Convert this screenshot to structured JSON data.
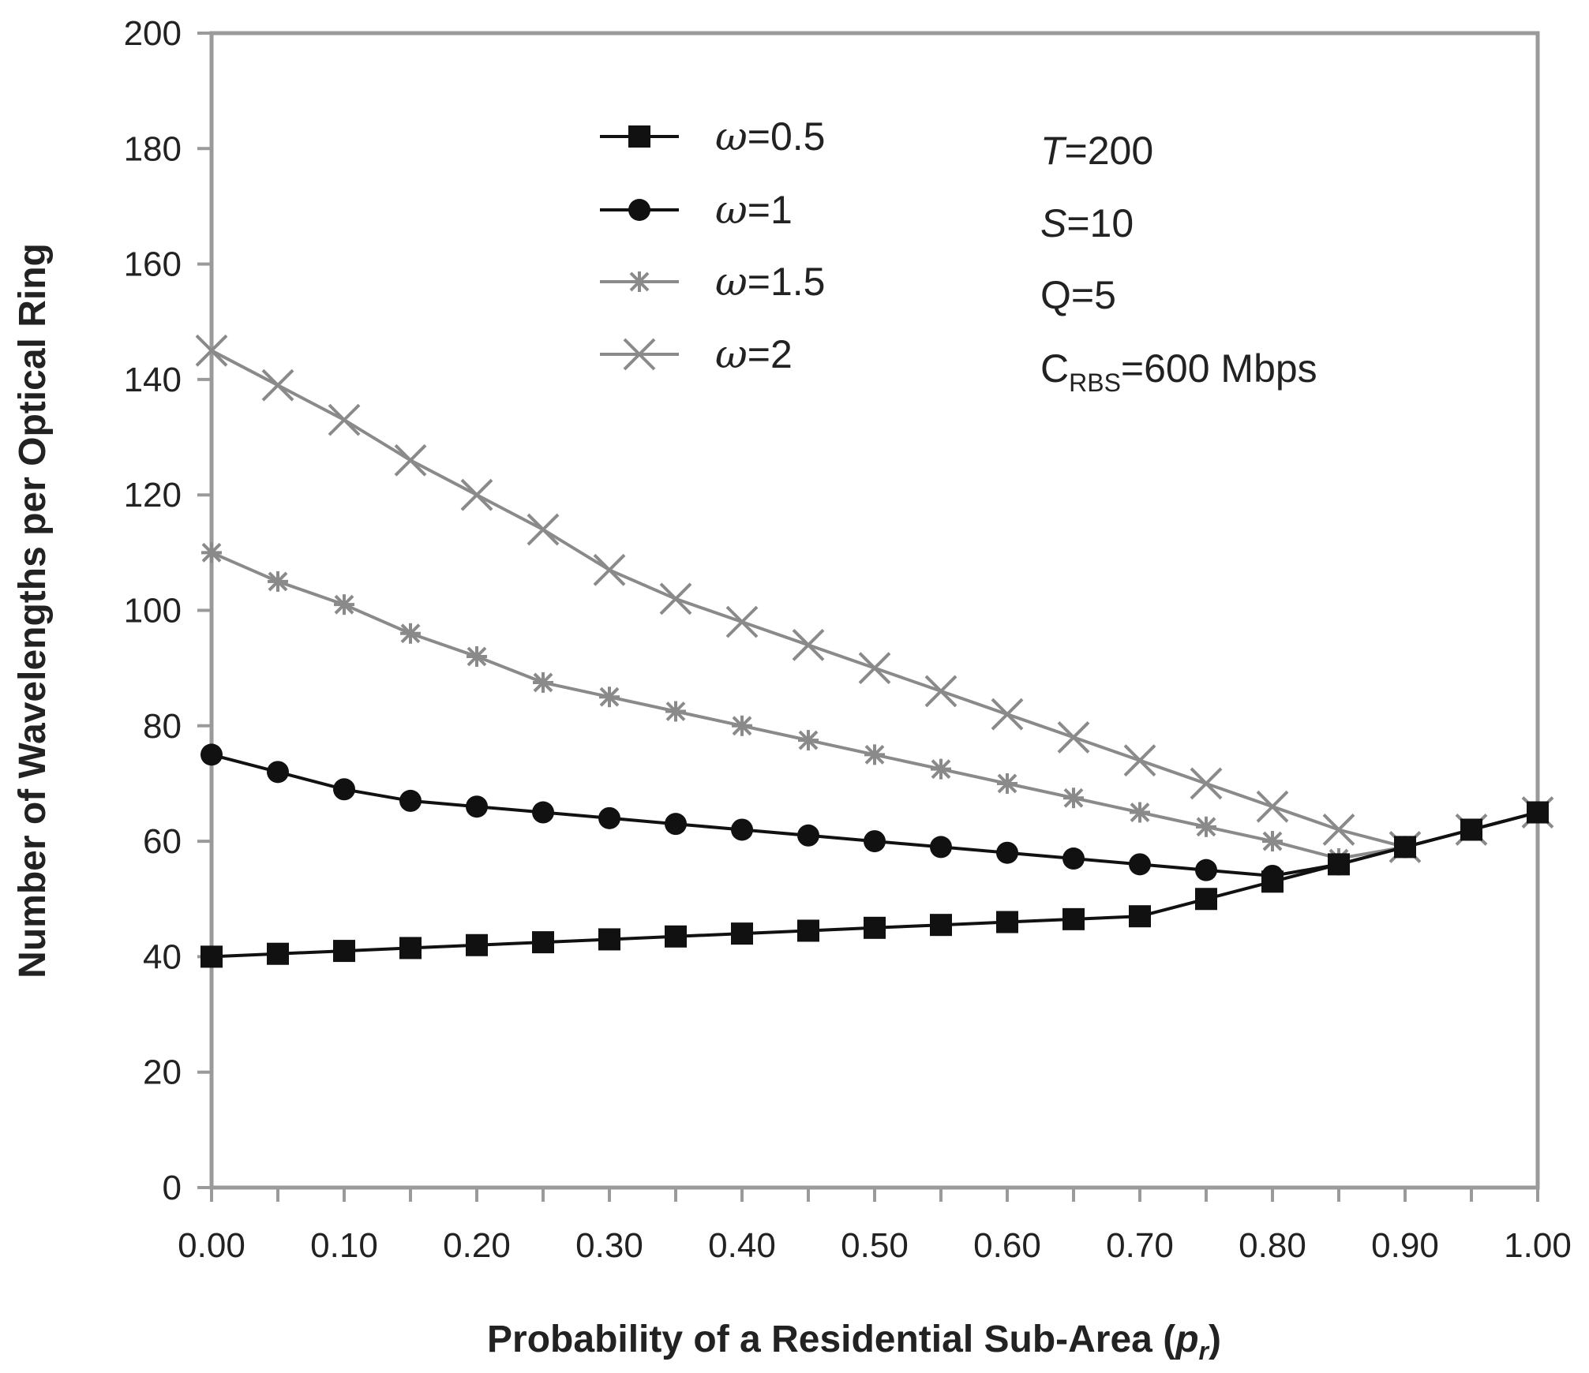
{
  "chart_data": {
    "type": "line",
    "title": "",
    "xlabel": "Probability of a Residential Sub-Area (",
    "xlabel_var": "p",
    "xlabel_sub": "r",
    "xlabel_close": ")",
    "ylabel": "Number of Wavelengths per Optical Ring",
    "xlim": [
      0,
      1
    ],
    "ylim": [
      0,
      200
    ],
    "x_ticks": [
      "0.00",
      "0.10",
      "0.20",
      "0.30",
      "0.40",
      "0.50",
      "0.60",
      "0.70",
      "0.80",
      "0.90",
      "1.00"
    ],
    "y_ticks": [
      "0",
      "20",
      "40",
      "60",
      "80",
      "100",
      "120",
      "140",
      "160",
      "180",
      "200"
    ],
    "x": [
      0.0,
      0.05,
      0.1,
      0.15,
      0.2,
      0.25,
      0.3,
      0.35,
      0.4,
      0.45,
      0.5,
      0.55,
      0.6,
      0.65,
      0.7,
      0.75,
      0.8,
      0.85,
      0.9,
      0.95,
      1.0
    ],
    "series": [
      {
        "name": "ω=0.5",
        "legend_symbol": "ω",
        "legend_value": "=0.5",
        "marker": "square",
        "color": "#111111",
        "values": [
          40,
          40.5,
          41,
          41.5,
          42,
          42.5,
          43,
          43.5,
          44,
          44.5,
          45,
          45.5,
          46,
          46.5,
          47,
          50,
          53,
          56,
          59,
          62,
          65
        ]
      },
      {
        "name": "ω=1",
        "legend_symbol": "ω",
        "legend_value": "=1",
        "marker": "circle",
        "color": "#111111",
        "values": [
          75,
          72,
          69,
          67,
          66,
          65,
          64,
          63,
          62,
          61,
          60,
          59,
          58,
          57,
          56,
          55,
          54,
          56,
          59,
          62,
          65
        ]
      },
      {
        "name": "ω=1.5",
        "legend_symbol": "ω",
        "legend_value": "=1.5",
        "marker": "asterisk",
        "color": "#8a8a8a",
        "values": [
          110,
          105,
          101,
          96,
          92,
          87.5,
          85,
          82.5,
          80,
          77.5,
          75,
          72.5,
          70,
          67.5,
          65,
          62.5,
          60,
          57,
          59,
          62,
          65
        ]
      },
      {
        "name": "ω=2",
        "legend_symbol": "ω",
        "legend_value": "=2",
        "marker": "cross",
        "color": "#8a8a8a",
        "values": [
          145,
          139,
          133,
          126,
          120,
          114,
          107,
          102,
          98,
          94,
          90,
          86,
          82,
          78,
          74,
          70,
          66,
          62,
          59,
          62,
          65
        ]
      }
    ],
    "legend_position": "top-center",
    "annotations": [
      {
        "var": "T",
        "rest": "=200"
      },
      {
        "var": "S",
        "rest": "=10"
      },
      {
        "var": "",
        "rest": "Q=5"
      },
      {
        "var": "",
        "main": "C",
        "sub": "RBS",
        "rest": "=600 Mbps"
      }
    ],
    "grid": false
  }
}
